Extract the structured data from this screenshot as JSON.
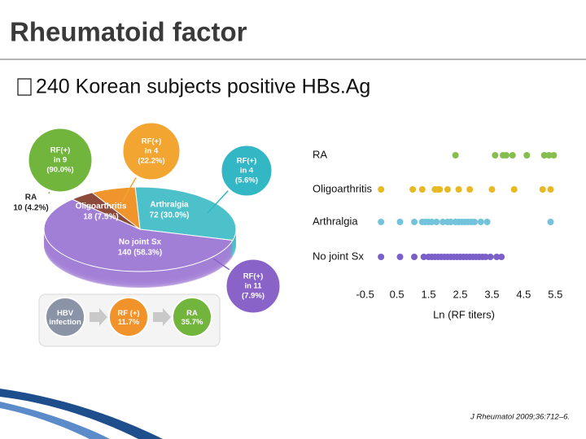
{
  "title": "Rheumatoid factor",
  "bullet": "240 Korean subjects positive HBs.Ag",
  "citation": "J Rheumatol 2009;36:712–6.",
  "flow": [
    "HBV infection",
    "RF (+) 11.7%",
    "RA 35.7%"
  ],
  "chart_data": [
    {
      "type": "pie",
      "categories": [
        "RA",
        "Oligoarthritis",
        "Arthralgia",
        "No joint Sx"
      ],
      "values": [
        10,
        18,
        72,
        140
      ],
      "value_labels": [
        "10 (4.2%)",
        "18 (7.5%)",
        "72 (30.0%)",
        "140 (58.3%)"
      ],
      "colors": [
        "#8c4a3c",
        "#f0952b",
        "#4cc1c9",
        "#a27fd6"
      ],
      "callouts": [
        [
          "RF(+)",
          "in 9",
          "(90.0%)"
        ],
        [
          "RF(+)",
          "in 4",
          "(22.2%)"
        ],
        [
          "RF(+)",
          "in 4",
          "(5.6%)"
        ],
        [
          "RF(+)",
          "in 11",
          "(7.9%)"
        ]
      ],
      "callout_colors": [
        "#72b53c",
        "#f2a531",
        "#33b7c4",
        "#8a63c9"
      ]
    },
    {
      "type": "strip",
      "xlabel": "Ln (RF titers)",
      "xlim": [
        -0.8,
        5.8
      ],
      "xticks": [
        -0.5,
        0.5,
        1.5,
        2.5,
        3.5,
        4.5,
        5.5
      ],
      "series": [
        {
          "name": "RA",
          "color": "#86bd4f",
          "values": [
            2.35,
            3.6,
            3.85,
            3.95,
            4.15,
            4.6,
            5.15,
            5.3,
            5.45
          ]
        },
        {
          "name": "Oligoarthritis",
          "color": "#e8b923",
          "values": [
            0.0,
            1.0,
            1.3,
            1.7,
            1.8,
            1.85,
            2.1,
            2.45,
            2.8,
            3.5,
            4.2,
            5.1,
            5.35
          ]
        },
        {
          "name": "Arthralgia",
          "color": "#72c4dc",
          "values": [
            0.0,
            0.6,
            1.05,
            1.3,
            1.4,
            1.5,
            1.6,
            1.75,
            1.95,
            2.1,
            2.2,
            2.35,
            2.45,
            2.55,
            2.65,
            2.75,
            2.85,
            2.95,
            3.15,
            3.35,
            5.35
          ]
        },
        {
          "name": "No joint Sx",
          "color": "#7b5fc9",
          "values": [
            0.0,
            0.6,
            1.05,
            1.35,
            1.5,
            1.6,
            1.7,
            1.8,
            1.9,
            2.0,
            2.1,
            2.2,
            2.3,
            2.4,
            2.5,
            2.6,
            2.7,
            2.8,
            2.9,
            3.0,
            3.1,
            3.2,
            3.3,
            3.45,
            3.65,
            3.8
          ]
        }
      ]
    }
  ]
}
